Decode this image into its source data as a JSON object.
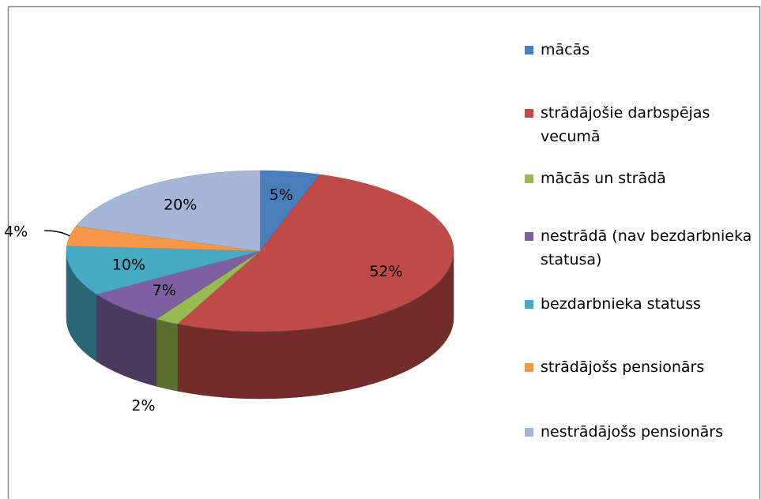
{
  "chart_data": {
    "type": "pie",
    "categories": [
      "mācās",
      "strādājošie darbspējas vecumā",
      "mācās un strādā",
      "nestrādā (nav bezdarbnieka statusa)",
      "bezdarbnieka statuss",
      "strādājošs pensionārs",
      "nestrādājošs pensionārs"
    ],
    "values": [
      5,
      52,
      2,
      7,
      10,
      4,
      20
    ],
    "value_labels": [
      "5%",
      "52%",
      "2%",
      "7%",
      "10%",
      "4%",
      "20%"
    ],
    "colors": [
      "#4a7ebb",
      "#be4b48",
      "#98b954",
      "#7d60a0",
      "#46aac5",
      "#f79646",
      "#a5b6d6"
    ],
    "legend": "right"
  }
}
